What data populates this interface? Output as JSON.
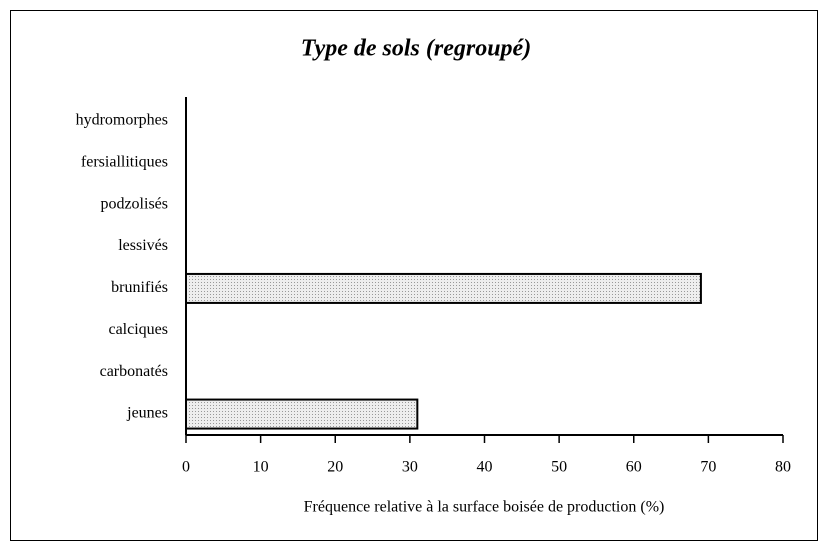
{
  "chart_data": {
    "type": "hbar",
    "title": "Type de sols (regroupé)",
    "categories": [
      "hydromorphes",
      "fersiallitiques",
      "podzolisés",
      "lessivés",
      "brunifiés",
      "calciques",
      "carbonatés",
      "jeunes"
    ],
    "values": [
      0,
      0,
      0,
      0,
      69,
      0,
      0,
      31
    ],
    "color": "#d9d9d9",
    "xlabel": "Fréquence relative à la surface boisée de production (%)",
    "xlim": [
      0,
      80
    ],
    "xticks": [
      0,
      10,
      20,
      30,
      40,
      50,
      60,
      70,
      80
    ]
  }
}
